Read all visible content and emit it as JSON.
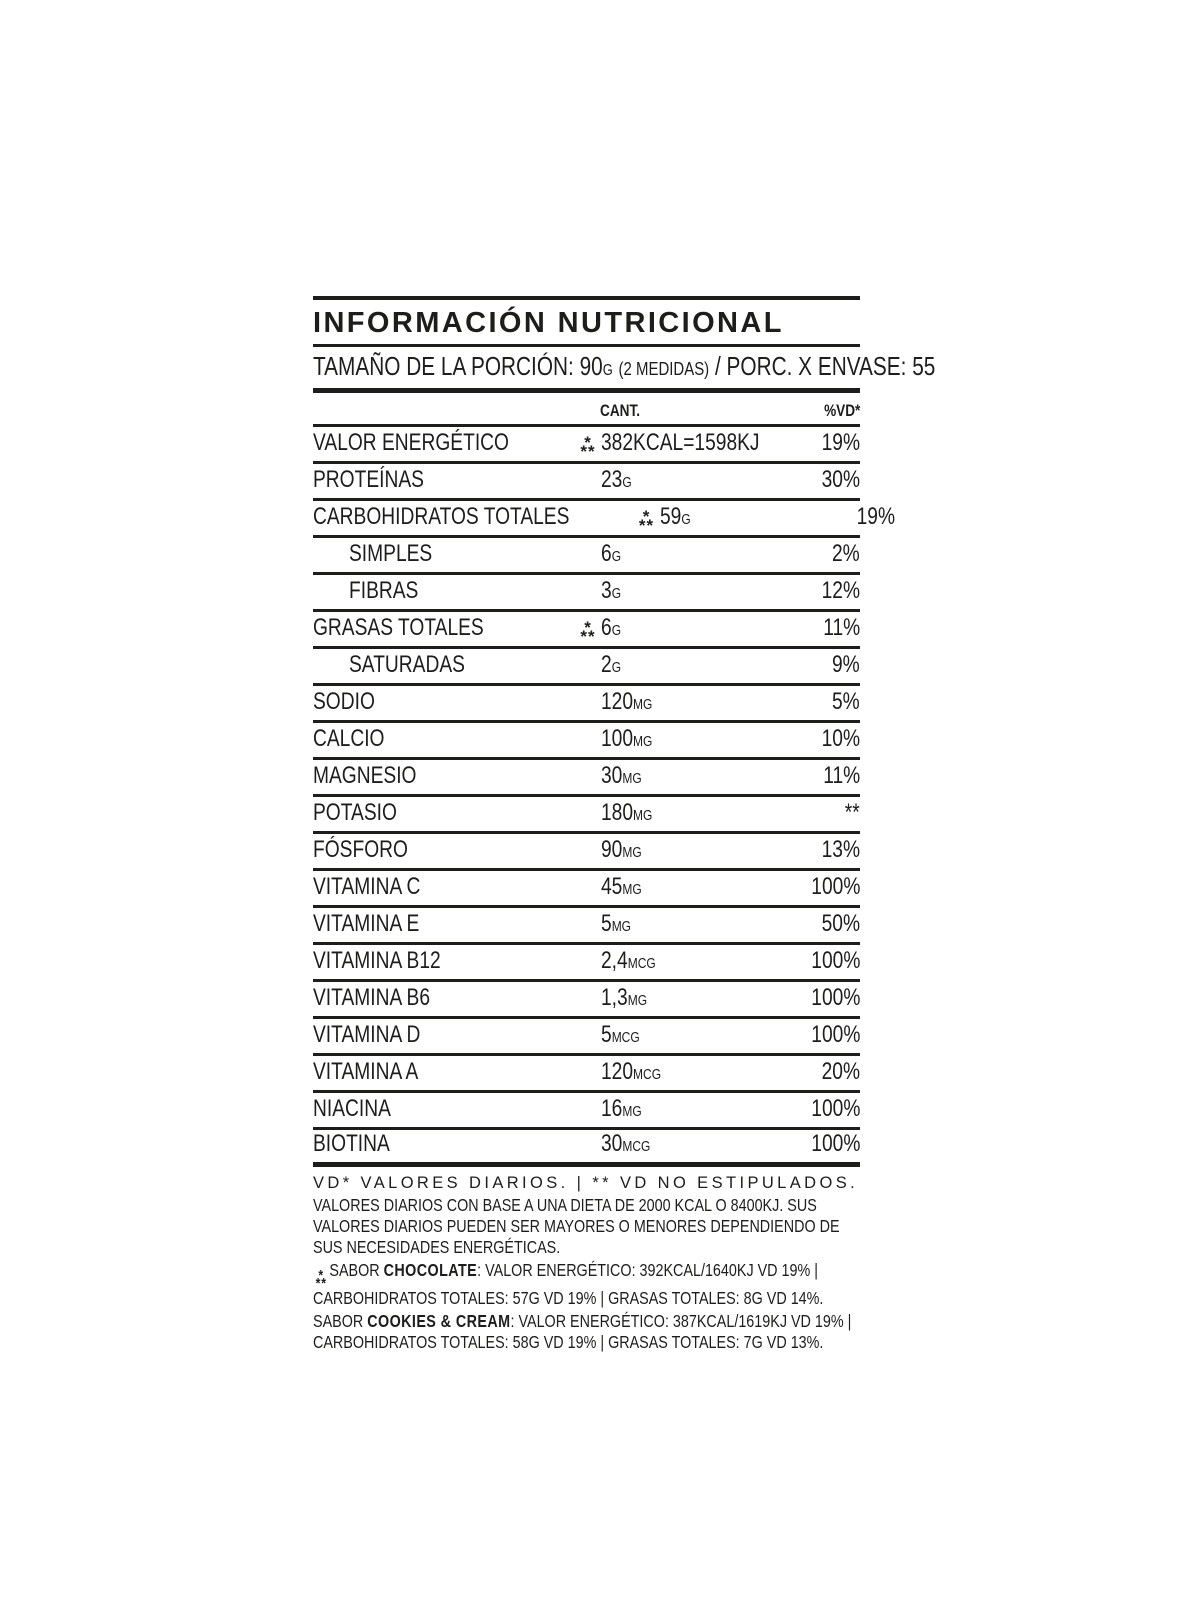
{
  "theme": {
    "ink": "#1d1d1b",
    "background": "#ffffff"
  },
  "symbols": {
    "asterism_top": "*",
    "asterism_bottom": "**",
    "no_dv_marker": "**"
  },
  "label": {
    "title": "INFORMACIÓN NUTRICIONAL",
    "serving": {
      "prefix": "TAMAÑO DE LA PORCIÓN: 90",
      "unit": "G",
      "measure": "(2 MEDIDAS)",
      "suffix": " / PORC. X ENVASE: 55"
    },
    "columns": {
      "amount": "CANT.",
      "dv": "%VD*"
    }
  },
  "table": {
    "rows": [
      {
        "name": "VALOR ENERGÉTICO",
        "indent": false,
        "asterism": true,
        "value": "382KCAL=1598KJ",
        "unit": "",
        "dv": "19%"
      },
      {
        "name": "PROTEÍNAS",
        "indent": false,
        "asterism": false,
        "value": "23",
        "unit": "G",
        "dv": "30%"
      },
      {
        "name": "CARBOHIDRATOS TOTALES",
        "indent": false,
        "asterism": true,
        "value": "59",
        "unit": "G",
        "dv": "19%"
      },
      {
        "name": "SIMPLES",
        "indent": true,
        "asterism": false,
        "value": "6",
        "unit": "G",
        "dv": "2%"
      },
      {
        "name": "FIBRAS",
        "indent": true,
        "asterism": false,
        "value": "3",
        "unit": "G",
        "dv": "12%"
      },
      {
        "name": "GRASAS TOTALES",
        "indent": false,
        "asterism": true,
        "value": "6",
        "unit": "G",
        "dv": "11%"
      },
      {
        "name": "SATURADAS",
        "indent": true,
        "asterism": false,
        "value": "2",
        "unit": "G",
        "dv": "9%"
      },
      {
        "name": "SODIO",
        "indent": false,
        "asterism": false,
        "value": "120",
        "unit": "MG",
        "dv": "5%"
      },
      {
        "name": "CALCIO",
        "indent": false,
        "asterism": false,
        "value": "100",
        "unit": "MG",
        "dv": "10%"
      },
      {
        "name": "MAGNESIO",
        "indent": false,
        "asterism": false,
        "value": "30",
        "unit": "MG",
        "dv": "11%"
      },
      {
        "name": "POTASIO",
        "indent": false,
        "asterism": false,
        "value": "180",
        "unit": "MG",
        "dv": "**"
      },
      {
        "name": "FÓSFORO",
        "indent": false,
        "asterism": false,
        "value": "90",
        "unit": "MG",
        "dv": "13%"
      },
      {
        "name": "VITAMINA C",
        "indent": false,
        "asterism": false,
        "value": "45",
        "unit": "MG",
        "dv": "100%"
      },
      {
        "name": "VITAMINA E",
        "indent": false,
        "asterism": false,
        "value": "5",
        "unit": "MG",
        "dv": "50%"
      },
      {
        "name": "VITAMINA B12",
        "indent": false,
        "asterism": false,
        "value": "2,4",
        "unit": "MCG",
        "dv": "100%"
      },
      {
        "name": "VITAMINA B6",
        "indent": false,
        "asterism": false,
        "value": "1,3",
        "unit": "MG",
        "dv": "100%"
      },
      {
        "name": "VITAMINA D",
        "indent": false,
        "asterism": false,
        "value": "5",
        "unit": "MCG",
        "dv": "100%"
      },
      {
        "name": "VITAMINA A",
        "indent": false,
        "asterism": false,
        "value": "120",
        "unit": "MCG",
        "dv": "20%"
      },
      {
        "name": "NIACINA",
        "indent": false,
        "asterism": false,
        "value": "16",
        "unit": "MG",
        "dv": "100%"
      },
      {
        "name": "BIOTINA",
        "indent": false,
        "asterism": false,
        "value": "30",
        "unit": "MCG",
        "dv": "100%"
      }
    ]
  },
  "footnotes": {
    "legend": "VD* VALORES DIARIOS. | ** VD NO ESTIPULADOS.",
    "daily_values": "VALORES DIARIOS CON BASE A UNA DIETA DE 2000 KCAL O 8400KJ. SUS VALORES DIARIOS PUEDEN SER MAYORES O MENORES DEPENDIENDO DE SUS NECESIDADES ENERGÉTICAS.",
    "chocolate": {
      "pre": "SABOR ",
      "flavor": "CHOCOLATE",
      "rest": ": VALOR ENERGÉTICO: 392KCAL/1640KJ VD 19% | CARBOHIDRATOS TOTALES: 57G VD 19% | GRASAS TOTALES: 8G VD 14%."
    },
    "cookies": {
      "pre": "SABOR ",
      "flavor": "COOKIES & CREAM",
      "rest": ": VALOR ENERGÉTICO: 387KCAL/1619KJ VD 19% | CARBOHIDRATOS TOTALES: 58G VD 19% | GRASAS TOTALES: 7G VD 13%."
    }
  }
}
